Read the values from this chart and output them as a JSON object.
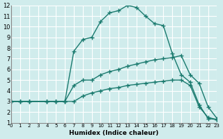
{
  "xlabel": "Humidex (Indice chaleur)",
  "ylabel": "",
  "xlim": [
    0,
    23
  ],
  "ylim": [
    1,
    12
  ],
  "xticks": [
    0,
    1,
    2,
    3,
    4,
    5,
    6,
    7,
    8,
    9,
    10,
    11,
    12,
    13,
    14,
    15,
    16,
    17,
    18,
    19,
    20,
    21,
    22,
    23
  ],
  "yticks": [
    1,
    2,
    3,
    4,
    5,
    6,
    7,
    8,
    9,
    10,
    11,
    12
  ],
  "bg_color": "#d0ecec",
  "line_color": "#1a7a6e",
  "grid_color": "#ffffff",
  "line1_x": [
    0,
    1,
    2,
    4,
    5,
    6,
    7,
    8,
    9,
    10,
    11,
    12,
    13,
    14,
    15,
    16,
    17,
    18,
    19,
    20,
    21,
    22,
    23
  ],
  "line1_y": [
    3,
    3,
    3,
    3,
    3,
    3,
    7.7,
    8.8,
    9.0,
    10.5,
    11.3,
    11.5,
    12.0,
    11.8,
    11.0,
    10.3,
    10.1,
    7.5,
    5.5,
    4.8,
    2.7,
    1.4,
    1.3
  ],
  "line2_x": [
    0,
    1,
    2,
    4,
    5,
    6,
    7,
    8,
    9,
    10,
    11,
    12,
    13,
    14,
    15,
    16,
    17,
    18,
    19,
    20,
    21,
    22,
    23
  ],
  "line2_y": [
    3,
    3,
    3,
    3,
    3,
    3,
    4.5,
    5.0,
    5.0,
    5.5,
    5.8,
    6.0,
    6.3,
    6.5,
    6.7,
    6.9,
    7.0,
    7.1,
    7.3,
    5.5,
    4.7,
    2.5,
    1.4
  ],
  "line3_x": [
    0,
    1,
    2,
    4,
    5,
    6,
    7,
    8,
    9,
    10,
    11,
    12,
    13,
    14,
    15,
    16,
    17,
    18,
    19,
    20,
    21,
    22,
    23
  ],
  "line3_y": [
    3,
    3,
    3,
    3,
    3,
    3,
    3.0,
    3.5,
    3.8,
    4.0,
    4.2,
    4.3,
    4.5,
    4.6,
    4.7,
    4.8,
    4.9,
    5.0,
    5.0,
    4.5,
    2.5,
    1.5,
    1.3
  ]
}
